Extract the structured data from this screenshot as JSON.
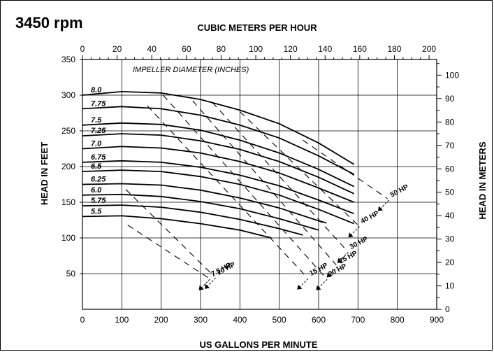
{
  "chart_data": {
    "type": "line",
    "title": "3450 rpm",
    "xlabel": "US GALLONS PER MINUTE",
    "ylabel": "HEAD IN FEET",
    "x2label": "CUBIC METERS PER HOUR",
    "y2label": "HEAD IN METERS",
    "annotation": "IMPELLER DIAMETER (INCHES)",
    "xlim": [
      0,
      900
    ],
    "ylim": [
      0,
      350
    ],
    "x2lim": [
      0,
      204.4
    ],
    "y2lim": [
      0,
      106.7
    ],
    "x_ticks": [
      0,
      100,
      200,
      300,
      400,
      500,
      600,
      700,
      800,
      900
    ],
    "y_ticks": [
      50,
      100,
      150,
      200,
      250,
      300,
      350
    ],
    "x2_ticks": [
      0,
      20,
      40,
      60,
      80,
      100,
      120,
      140,
      160,
      180,
      200
    ],
    "y2_ticks": [
      0,
      10,
      20,
      30,
      40,
      50,
      60,
      70,
      80,
      90,
      100
    ],
    "grid": true,
    "series": [
      {
        "name": "8.0",
        "x": [
          0,
          100,
          200,
          300,
          400,
          500,
          600,
          690
        ],
        "y": [
          300,
          305,
          303,
          294,
          279,
          260,
          233,
          203
        ]
      },
      {
        "name": "7.75",
        "x": [
          0,
          100,
          200,
          300,
          400,
          500,
          600,
          690
        ],
        "y": [
          281,
          284,
          281,
          272,
          258,
          240,
          215,
          189
        ]
      },
      {
        "name": "7.5",
        "x": [
          0,
          100,
          200,
          300,
          400,
          500,
          600,
          690
        ],
        "y": [
          258,
          261,
          259,
          251,
          237,
          219,
          196,
          172
        ]
      },
      {
        "name": "7.25",
        "x": [
          0,
          100,
          200,
          300,
          400,
          500,
          600,
          690
        ],
        "y": [
          243,
          246,
          244,
          236,
          224,
          207,
          185,
          162
        ]
      },
      {
        "name": "7.0",
        "x": [
          0,
          100,
          200,
          300,
          400,
          500,
          600,
          690
        ],
        "y": [
          225,
          228,
          226,
          219,
          207,
          191,
          170,
          150
        ]
      },
      {
        "name": "6.75",
        "x": [
          0,
          100,
          200,
          300,
          400,
          500,
          600,
          690
        ],
        "y": [
          206,
          208,
          206,
          199,
          188,
          173,
          153,
          134
        ]
      },
      {
        "name": "6.5",
        "x": [
          0,
          100,
          200,
          300,
          400,
          500,
          600,
          690
        ],
        "y": [
          193,
          195,
          193,
          186,
          175,
          160,
          140,
          120
        ]
      },
      {
        "name": "6.25",
        "x": [
          0,
          100,
          200,
          300,
          400,
          500,
          600,
          620
        ],
        "y": [
          175,
          176,
          174,
          167,
          156,
          142,
          124,
          121
        ]
      },
      {
        "name": "6.0",
        "x": [
          0,
          100,
          200,
          300,
          400,
          500,
          600
        ],
        "y": [
          160,
          161,
          158,
          151,
          141,
          127,
          111
        ]
      },
      {
        "name": "5.75",
        "x": [
          0,
          100,
          200,
          300,
          400,
          500,
          560
        ],
        "y": [
          145,
          146,
          143,
          136,
          126,
          113,
          104
        ]
      },
      {
        "name": "5.5",
        "x": [
          0,
          100,
          200,
          300,
          400,
          480
        ],
        "y": [
          130,
          131,
          127,
          120,
          111,
          100
        ]
      }
    ],
    "hp_lines": [
      {
        "name": "7.5 HP",
        "x": [
          115,
          320
        ],
        "y": [
          118,
          44
        ]
      },
      {
        "name": "10 HP",
        "x": [
          110,
          335
        ],
        "y": [
          168,
          46
        ]
      },
      {
        "name": "15 HP",
        "x": [
          165,
          570
        ],
        "y": [
          285,
          45
        ]
      },
      {
        "name": "20 HP",
        "x": [
          205,
          618
        ],
        "y": [
          300,
          44
        ]
      },
      {
        "name": "25 HP",
        "x": [
          280,
          645
        ],
        "y": [
          292,
          62
        ]
      },
      {
        "name": "30 HP",
        "x": [
          330,
          672
        ],
        "y": [
          290,
          82
        ]
      },
      {
        "name": "40 HP",
        "x": [
          400,
          700
        ],
        "y": [
          277,
          118
        ]
      },
      {
        "name": "50 HP",
        "x": [
          560,
          775
        ],
        "y": [
          237,
          155
        ]
      }
    ]
  }
}
